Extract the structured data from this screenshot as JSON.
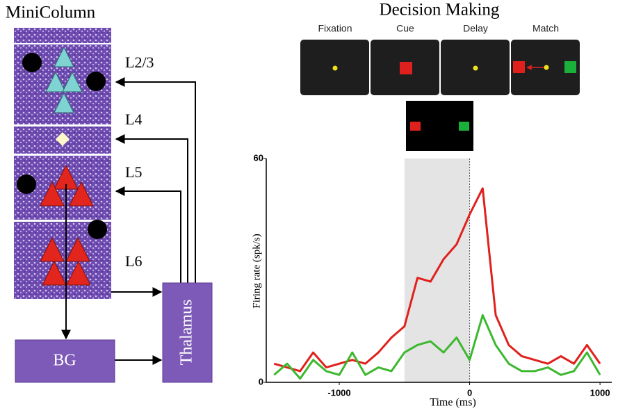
{
  "minicolumn": {
    "title": "MiniColumn",
    "layers": [
      "L2/3",
      "L4",
      "L5",
      "L6"
    ],
    "bg": "BG",
    "thalamus": "Thalamus"
  },
  "decision": {
    "title": "Decision Making",
    "phases": [
      "Fixation",
      "Cue",
      "Delay",
      "Match"
    ]
  },
  "chart_data": {
    "type": "line",
    "xlabel": "Time (ms)",
    "ylabel": "Firing rate (spk/s)",
    "x": [
      -1500,
      -1400,
      -1300,
      -1200,
      -1100,
      -1000,
      -900,
      -800,
      -700,
      -600,
      -500,
      -400,
      -300,
      -200,
      -100,
      0,
      100,
      200,
      300,
      400,
      500,
      600,
      700,
      800,
      900,
      1000
    ],
    "series": [
      {
        "color": "#e0201c",
        "values": [
          5,
          4,
          3,
          8,
          4,
          5,
          6,
          5,
          8,
          12,
          15,
          28,
          27,
          33,
          37,
          45,
          52,
          18,
          10,
          7,
          6,
          5,
          7,
          5,
          10,
          5
        ]
      },
      {
        "color": "#3cb82e",
        "values": [
          2,
          5,
          1,
          6,
          3,
          2,
          8,
          2,
          4,
          3,
          8,
          10,
          11,
          8,
          12,
          6,
          18,
          10,
          5,
          3,
          3,
          4,
          2,
          3,
          8,
          2
        ]
      }
    ],
    "xlim": [
      -1560,
      1090
    ],
    "ylim": [
      0,
      60
    ],
    "xticks": [
      -1000,
      0,
      1000
    ],
    "yticks": [
      0,
      60
    ],
    "highlight": [
      -500,
      0
    ]
  }
}
